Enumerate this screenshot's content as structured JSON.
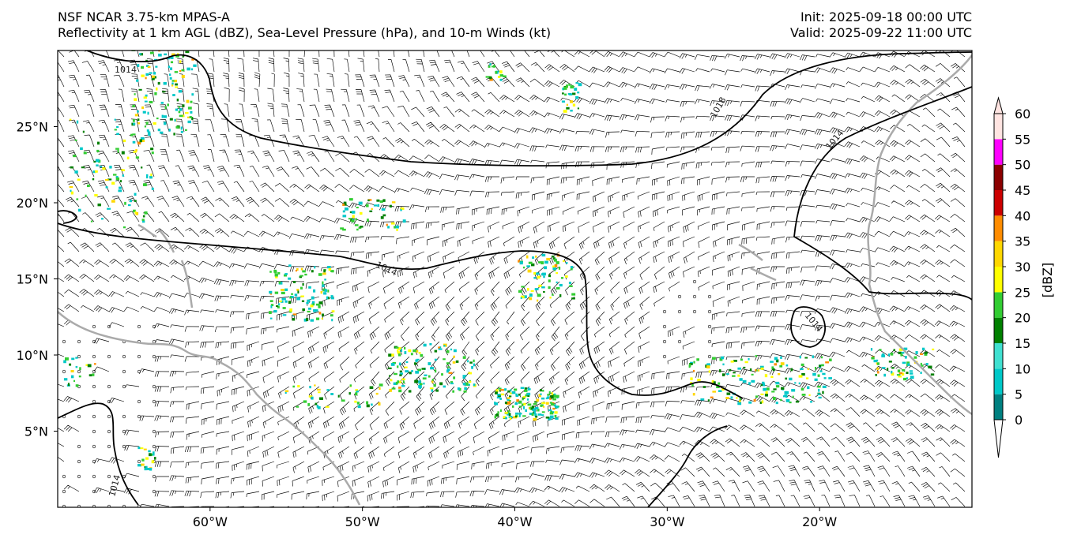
{
  "header": {
    "model_line": "NSF NCAR 3.75-km MPAS-A",
    "fields_line": "Reflectivity at 1 km AGL (dBZ), Sea-Level Pressure (hPa), and 10-m Winds (kt)",
    "init_line": "Init: 2025-09-18 00:00 UTC",
    "valid_line": "Valid: 2025-09-22 11:00 UTC"
  },
  "map": {
    "lon_range": [
      -70,
      -10
    ],
    "lat_range": [
      0,
      30
    ],
    "lon_ticks": [
      {
        "value": -60,
        "label": "60°W"
      },
      {
        "value": -50,
        "label": "50°W"
      },
      {
        "value": -40,
        "label": "40°W"
      },
      {
        "value": -30,
        "label": "30°W"
      },
      {
        "value": -20,
        "label": "20°W"
      }
    ],
    "lat_ticks": [
      {
        "value": 25,
        "label": "25°N"
      },
      {
        "value": 20,
        "label": "20°N"
      },
      {
        "value": 15,
        "label": "15°N"
      },
      {
        "value": 10,
        "label": "10°N"
      },
      {
        "value": 5,
        "label": "5°N"
      }
    ],
    "isobar_labels": [
      "1014",
      "1018",
      "1014",
      "1014",
      "1014",
      "1014"
    ],
    "colors": {
      "coastline": "#aaaaaa",
      "isobar": "#000000",
      "barb": "#000000"
    }
  },
  "colorbar": {
    "label": "[dBZ]",
    "ticks": [
      "0",
      "5",
      "10",
      "15",
      "20",
      "25",
      "30",
      "35",
      "40",
      "45",
      "50",
      "55",
      "60"
    ],
    "colors": [
      "#ffffff",
      "#008080",
      "#00c8c8",
      "#40e0d0",
      "#008000",
      "#32cd32",
      "#ffff00",
      "#ffd700",
      "#ff8c00",
      "#cc0000",
      "#8b0000",
      "#ff00ff",
      "#ffe4e1"
    ]
  }
}
